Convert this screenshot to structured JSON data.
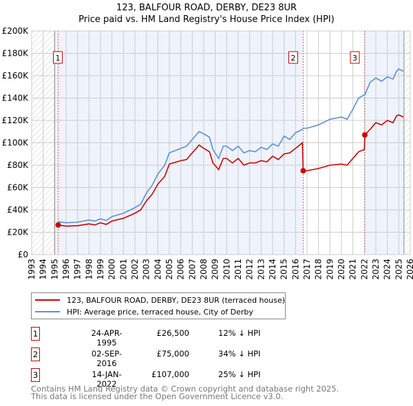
{
  "title": "123, BALFOUR ROAD, DERBY, DE23 8UR",
  "subtitle": "Price paid vs. HM Land Registry's House Price Index (HPI)",
  "chart_data": {
    "type": "line",
    "xlim": [
      1993,
      2026
    ],
    "ylim": [
      0,
      200000
    ],
    "x_ticks": [
      "1993",
      "1994",
      "1995",
      "1996",
      "1997",
      "1998",
      "1999",
      "2000",
      "2001",
      "2002",
      "2003",
      "2004",
      "2005",
      "2006",
      "2007",
      "2008",
      "2009",
      "2010",
      "2011",
      "2012",
      "2013",
      "2014",
      "2015",
      "2016",
      "2017",
      "2018",
      "2019",
      "2020",
      "2021",
      "2022",
      "2023",
      "2024",
      "2025",
      "2026"
    ],
    "y_ticks": [
      "£0",
      "£20K",
      "£40K",
      "£60K",
      "£80K",
      "£100K",
      "£120K",
      "£140K",
      "£160K",
      "£180K",
      "£200K"
    ],
    "series": [
      {
        "name": "123, BALFOUR ROAD, DERBY, DE23 8UR (terraced house)",
        "color": "#cc0000",
        "x": [
          1995.31,
          1996,
          1997,
          1998,
          1998.5,
          1999,
          1999.5,
          2000,
          2001,
          2002,
          2002.5,
          2003,
          2003.5,
          2004,
          2004.6,
          2005,
          2006,
          2006.5,
          2007,
          2007.6,
          2008,
          2008.5,
          2008.8,
          2009.3,
          2009.7,
          2010,
          2010.5,
          2011,
          2011.5,
          2012,
          2012.5,
          2013,
          2013.5,
          2014,
          2014.5,
          2015,
          2015.5,
          2016,
          2016.6,
          2016.67,
          2017,
          2018,
          2019,
          2020,
          2020.5,
          2021,
          2021.5,
          2022.0,
          2022.04,
          2022.5,
          2023,
          2023.5,
          2024,
          2024.5,
          2024.8,
          2025,
          2025.4
        ],
        "y": [
          26500,
          25500,
          25800,
          27500,
          26500,
          28500,
          27000,
          30000,
          32500,
          37000,
          40000,
          48000,
          54000,
          63000,
          70000,
          81000,
          84000,
          85000,
          91000,
          98000,
          95000,
          92000,
          82000,
          76000,
          86000,
          86000,
          82000,
          86000,
          80000,
          82000,
          82000,
          84000,
          83000,
          88000,
          85000,
          90000,
          91000,
          95000,
          100000,
          75000,
          75000,
          77000,
          80000,
          81000,
          80000,
          86000,
          92000,
          94000,
          107000,
          112000,
          118000,
          116000,
          120000,
          118000,
          124000,
          125000,
          123000
        ]
      },
      {
        "name": "HPI: Average price, terraced house, City of Derby",
        "color": "#5b8fd6",
        "x": [
          1995.3,
          1996,
          1997,
          1998,
          1998.5,
          1999,
          1999.5,
          2000,
          2001,
          2002,
          2002.5,
          2003,
          2003.5,
          2004,
          2004.6,
          2005,
          2006,
          2006.5,
          2007,
          2007.6,
          2008,
          2008.5,
          2008.8,
          2009.3,
          2009.7,
          2010,
          2010.5,
          2011,
          2011.5,
          2012,
          2012.5,
          2013,
          2013.5,
          2014,
          2014.5,
          2015,
          2015.5,
          2016,
          2016.6,
          2016.67,
          2017,
          2018,
          2019,
          2020,
          2020.5,
          2021,
          2021.5,
          2022.0,
          2022.04,
          2022.5,
          2023,
          2023.5,
          2024,
          2024.5,
          2024.8,
          2025,
          2025.4
        ],
        "y": [
          29500,
          28500,
          29000,
          31000,
          30000,
          32000,
          30500,
          34000,
          37000,
          42000,
          45000,
          55000,
          62000,
          72000,
          80000,
          91000,
          95000,
          97000,
          103000,
          110000,
          108000,
          105000,
          94000,
          86000,
          97000,
          97000,
          93000,
          97000,
          91000,
          93000,
          92000,
          96000,
          94000,
          99000,
          97000,
          106000,
          103000,
          109000,
          112000,
          113000,
          113000,
          116000,
          121000,
          123000,
          121000,
          130000,
          140000,
          143000,
          143000,
          154000,
          158000,
          155000,
          159000,
          157000,
          164000,
          166000,
          164000
        ]
      }
    ],
    "sales": [
      {
        "label": "1",
        "x": 1995.31,
        "y": 26500
      },
      {
        "label": "2",
        "x": 2016.67,
        "y": 75000
      },
      {
        "label": "3",
        "x": 2022.04,
        "y": 107000
      }
    ],
    "legend_position": "below"
  },
  "table": [
    {
      "num": "1",
      "date": "24-APR-1995",
      "price": "£26,500",
      "hpi": "12% ↓ HPI"
    },
    {
      "num": "2",
      "date": "02-SEP-2016",
      "price": "£75,000",
      "hpi": "34% ↓ HPI"
    },
    {
      "num": "3",
      "date": "14-JAN-2022",
      "price": "£107,000",
      "hpi": "25% ↓ HPI"
    }
  ],
  "footer": {
    "line1": "Contains HM Land Registry data © Crown copyright and database right 2025.",
    "line2": "This data is licensed under the Open Government Licence v3.0."
  }
}
